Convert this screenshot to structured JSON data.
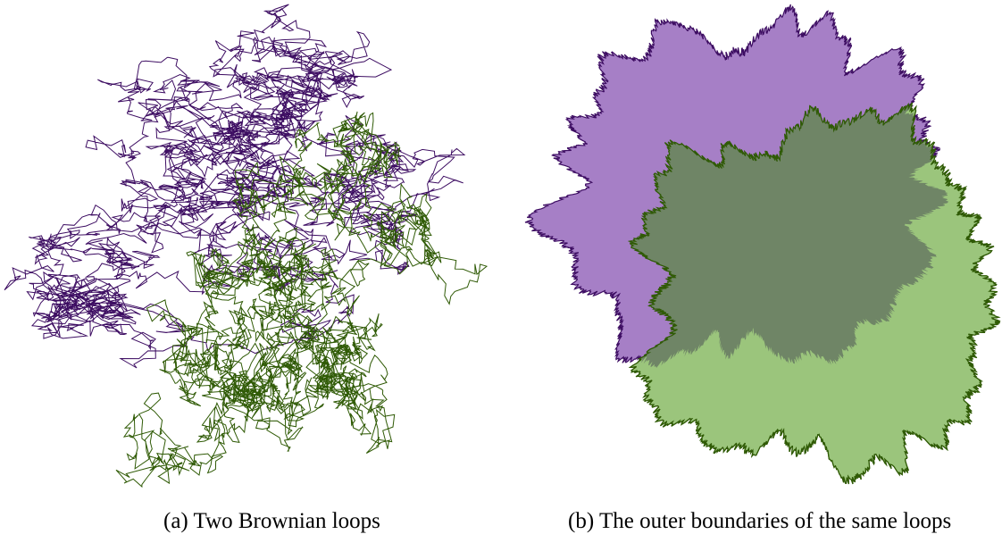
{
  "figure": {
    "captions": [
      "(a) Two Brownian loops",
      "(b) The outer boundaries of the same loops"
    ]
  }
}
